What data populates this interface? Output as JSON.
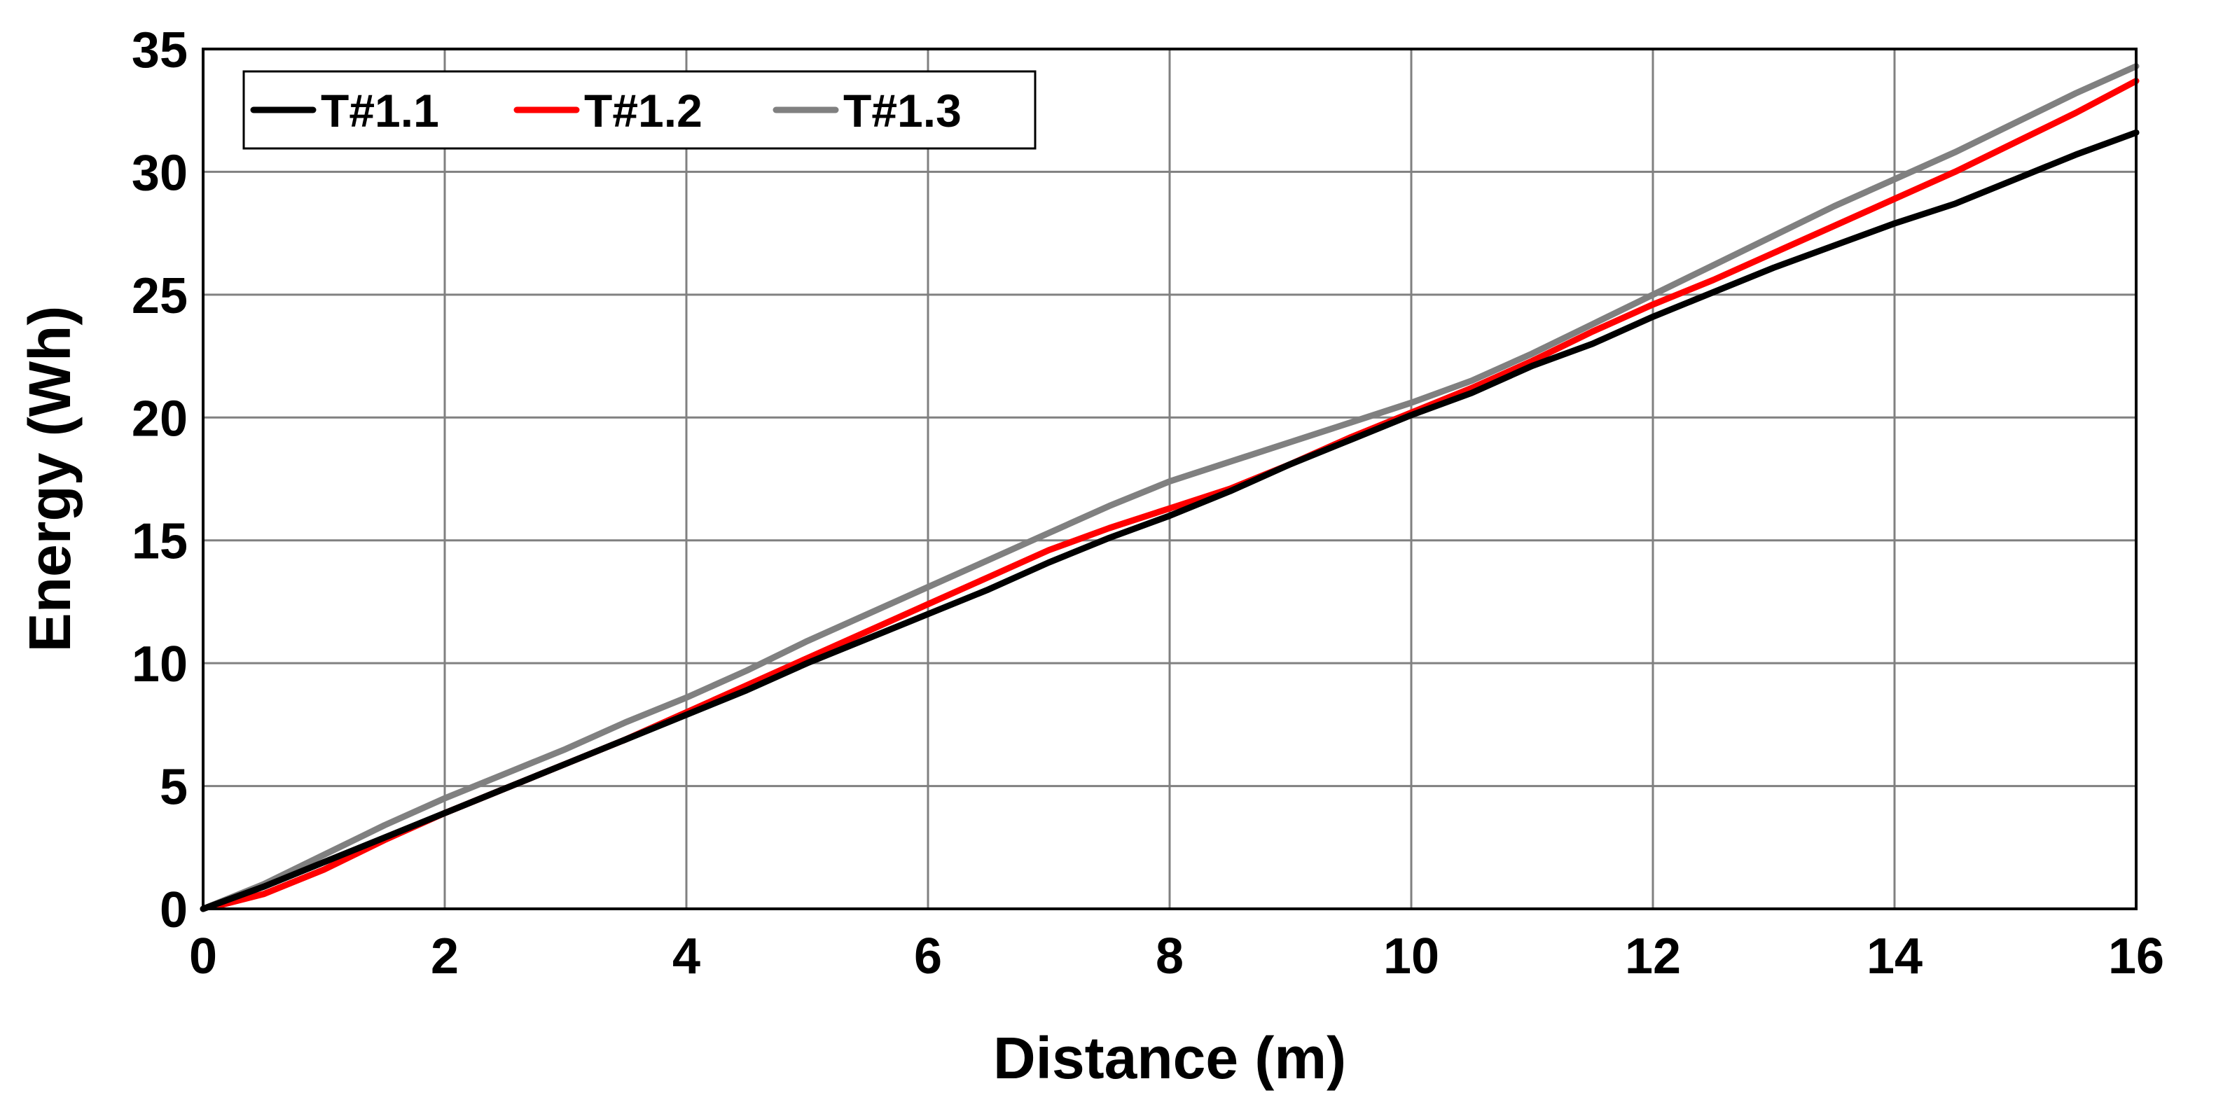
{
  "chart_data": {
    "type": "line",
    "xlabel": "Distance (m)",
    "ylabel": "Energy (Wh)",
    "xlim": [
      0,
      16
    ],
    "ylim": [
      0,
      35
    ],
    "xticks": [
      "0",
      "2",
      "4",
      "6",
      "8",
      "10",
      "12",
      "14",
      "16"
    ],
    "yticks": [
      "0",
      "5",
      "10",
      "15",
      "20",
      "25",
      "30",
      "35"
    ],
    "grid": true,
    "legend_position": "top-left",
    "series": [
      {
        "name": "T#1.1",
        "color": "#000000",
        "x": [
          0,
          0.5,
          1,
          1.5,
          2,
          2.5,
          3,
          3.5,
          4,
          4.5,
          5,
          5.5,
          6,
          6.5,
          7,
          7.5,
          8,
          8.5,
          9,
          9.5,
          10,
          10.5,
          11,
          11.5,
          12,
          12.5,
          13,
          13.5,
          14,
          14.5,
          15,
          15.5,
          16
        ],
        "values": [
          0,
          0.9,
          1.9,
          2.9,
          3.9,
          4.9,
          5.9,
          6.9,
          7.9,
          8.9,
          10.0,
          11.0,
          12.0,
          13.0,
          14.1,
          15.1,
          16.0,
          17.0,
          18.1,
          19.1,
          20.1,
          21.0,
          22.1,
          23.0,
          24.1,
          25.1,
          26.1,
          27.0,
          27.9,
          28.7,
          29.7,
          30.7,
          31.6
        ]
      },
      {
        "name": "T#1.2",
        "color": "#ff0000",
        "x": [
          0.1,
          0.5,
          1,
          1.5,
          2,
          2.5,
          3,
          3.5,
          4,
          4.5,
          5,
          5.5,
          6,
          6.5,
          7,
          7.5,
          8,
          8.5,
          9,
          9.5,
          10,
          10.5,
          11,
          11.5,
          12,
          12.5,
          13,
          13.5,
          14,
          14.5,
          15,
          15.5,
          16
        ],
        "values": [
          0.1,
          0.6,
          1.6,
          2.8,
          3.9,
          4.9,
          5.9,
          6.9,
          8.0,
          9.1,
          10.2,
          11.3,
          12.4,
          13.5,
          14.6,
          15.5,
          16.3,
          17.1,
          18.1,
          19.2,
          20.2,
          21.2,
          22.3,
          23.5,
          24.6,
          25.6,
          26.7,
          27.8,
          28.9,
          30.0,
          31.2,
          32.4,
          33.7
        ]
      },
      {
        "name": "T#1.3",
        "color": "#808080",
        "x": [
          0,
          0.5,
          1,
          1.5,
          2,
          2.5,
          3,
          3.5,
          4,
          4.5,
          5,
          5.5,
          6,
          6.5,
          7,
          7.5,
          8,
          8.5,
          9,
          9.5,
          10,
          10.5,
          11,
          11.5,
          12,
          12.5,
          13,
          13.5,
          14,
          14.5,
          15,
          15.5,
          16
        ],
        "values": [
          0,
          1.0,
          2.2,
          3.4,
          4.5,
          5.5,
          6.5,
          7.6,
          8.6,
          9.7,
          10.9,
          12.0,
          13.1,
          14.2,
          15.3,
          16.4,
          17.4,
          18.2,
          19.0,
          19.8,
          20.6,
          21.5,
          22.6,
          23.8,
          25.0,
          26.2,
          27.4,
          28.6,
          29.7,
          30.8,
          32.0,
          33.2,
          34.3
        ]
      }
    ]
  }
}
